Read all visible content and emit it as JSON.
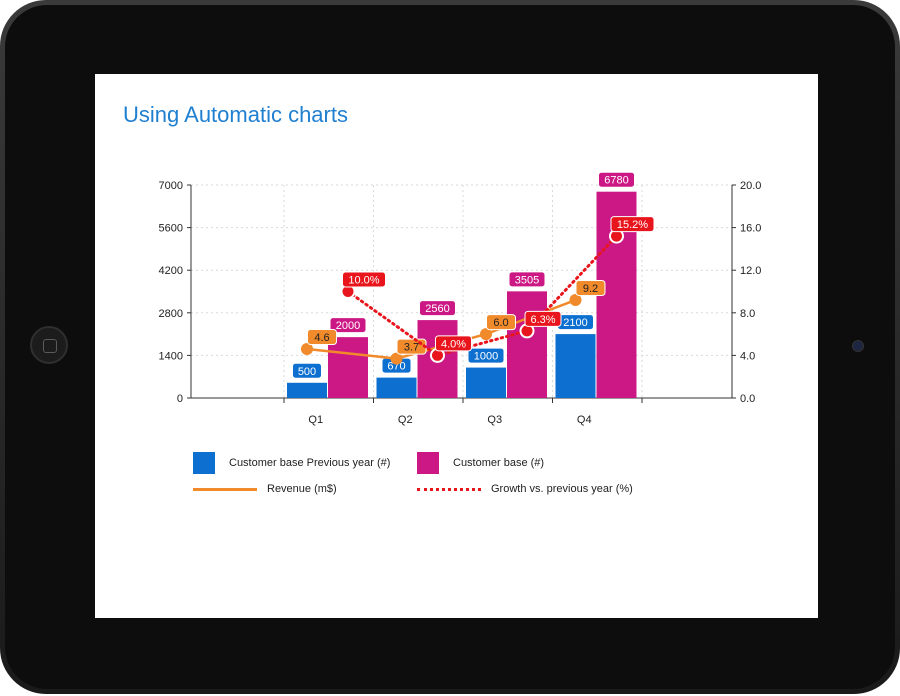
{
  "page": {
    "title": "Using Automatic charts"
  },
  "colors": {
    "prev": "#0d6fd0",
    "cur": "#cc1884",
    "revenue": "#f08a2a",
    "growth": "#e8151c"
  },
  "legend": {
    "prev": "Customer base Previous year (#)",
    "cur": "Customer base (#)",
    "revenue": "Revenue (m$)",
    "growth": "Growth vs. previous year (%)"
  },
  "chart_data": {
    "type": "bar",
    "categories": [
      "Q1",
      "Q2",
      "Q3",
      "Q4"
    ],
    "series": [
      {
        "name": "Customer base Previous year (#)",
        "kind": "bar",
        "axis": "left",
        "values": [
          500,
          670,
          1000,
          2100
        ],
        "labels": [
          "500",
          "670",
          "1000",
          "2100"
        ]
      },
      {
        "name": "Customer base (#)",
        "kind": "bar",
        "axis": "left",
        "values": [
          2000,
          2560,
          3505,
          6780
        ],
        "labels": [
          "2000",
          "2560",
          "3505",
          "6780"
        ]
      },
      {
        "name": "Revenue (m$)",
        "kind": "line",
        "axis": "right",
        "values": [
          4.6,
          3.7,
          6.0,
          9.2
        ],
        "labels": [
          "4.6",
          "3.7",
          "6.0",
          "9.2"
        ]
      },
      {
        "name": "Growth vs. previous year (%)",
        "kind": "line-dotted",
        "axis": "right",
        "values": [
          10.0,
          4.0,
          6.3,
          15.2
        ],
        "labels": [
          "10.0%",
          "4.0%",
          "6.3%",
          "15.2%"
        ]
      }
    ],
    "ylim_left": [
      0,
      7000
    ],
    "ylim_right": [
      0,
      20
    ],
    "yticks_left": [
      "0",
      "1400",
      "2800",
      "4200",
      "5600",
      "7000"
    ],
    "yticks_right": [
      "0.0",
      "4.0",
      "8.0",
      "12.0",
      "16.0",
      "20.0"
    ],
    "grid": true,
    "legend_position": "bottom"
  }
}
